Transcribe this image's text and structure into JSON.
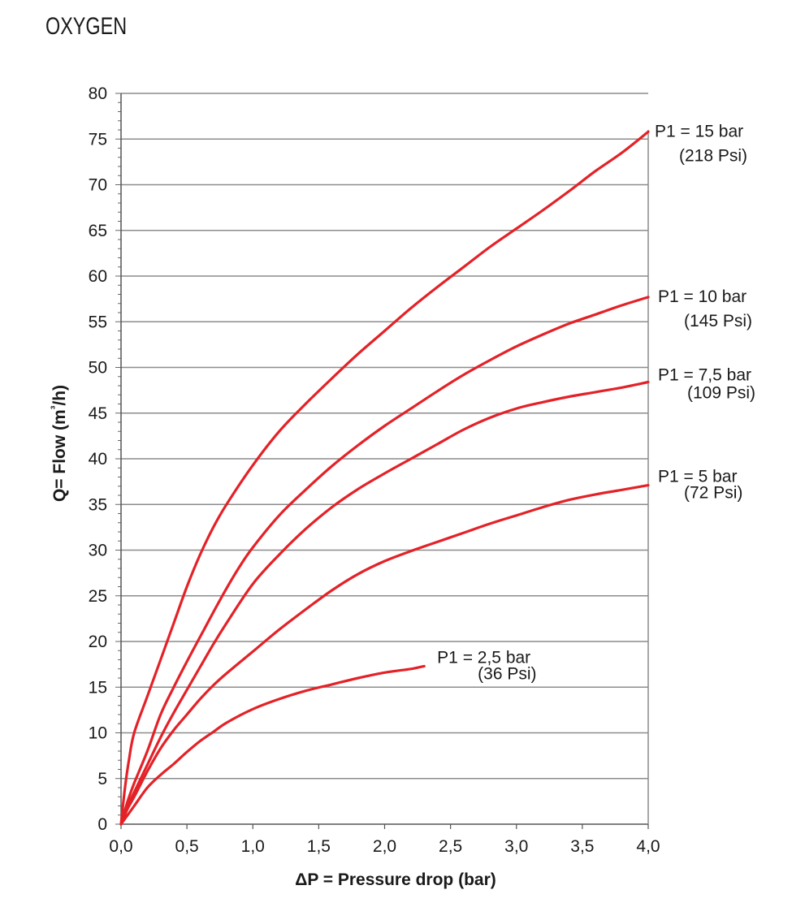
{
  "chart_data": {
    "type": "line",
    "title": "OXYGEN",
    "xlabel": "ΔP = Pressure drop (bar)",
    "ylabel": "Q= Flow (m³/h)",
    "xlim": [
      0,
      4
    ],
    "ylim": [
      0,
      80
    ],
    "x_ticks": [
      "0,0",
      "0,5",
      "1,0",
      "1,5",
      "2,0",
      "2,5",
      "3,0",
      "3,5",
      "4,0"
    ],
    "y_ticks": [
      "0",
      "5",
      "10",
      "15",
      "20",
      "25",
      "30",
      "35",
      "40",
      "45",
      "50",
      "55",
      "60",
      "65",
      "70",
      "75",
      "80"
    ],
    "grid": "horizontal",
    "line_color": "#e32228",
    "series": [
      {
        "name": "P1 = 15 bar",
        "sub": "(218 Psi)",
        "points": [
          [
            0,
            0
          ],
          [
            0.03,
            4
          ],
          [
            0.06,
            7
          ],
          [
            0.1,
            10
          ],
          [
            0.2,
            14
          ],
          [
            0.3,
            18
          ],
          [
            0.4,
            22
          ],
          [
            0.5,
            26
          ],
          [
            0.6,
            29.5
          ],
          [
            0.7,
            32.5
          ],
          [
            0.8,
            35
          ],
          [
            1.0,
            39.3
          ],
          [
            1.2,
            43
          ],
          [
            1.4,
            46
          ],
          [
            1.6,
            48.8
          ],
          [
            1.8,
            51.5
          ],
          [
            2.0,
            54
          ],
          [
            2.2,
            56.5
          ],
          [
            2.4,
            58.8
          ],
          [
            2.6,
            61
          ],
          [
            2.8,
            63.2
          ],
          [
            3.0,
            65.2
          ],
          [
            3.2,
            67.2
          ],
          [
            3.4,
            69.3
          ],
          [
            3.6,
            71.5
          ],
          [
            3.8,
            73.5
          ],
          [
            4.0,
            75.8
          ]
        ]
      },
      {
        "name": "P1 = 10 bar",
        "sub": "(145 Psi)",
        "points": [
          [
            0,
            0
          ],
          [
            0.05,
            2.5
          ],
          [
            0.1,
            4.5
          ],
          [
            0.2,
            8
          ],
          [
            0.3,
            12
          ],
          [
            0.4,
            15
          ],
          [
            0.5,
            17.8
          ],
          [
            0.6,
            20.5
          ],
          [
            0.7,
            23.2
          ],
          [
            0.8,
            25.8
          ],
          [
            0.9,
            28.2
          ],
          [
            1.0,
            30.3
          ],
          [
            1.2,
            33.8
          ],
          [
            1.4,
            36.6
          ],
          [
            1.6,
            39.2
          ],
          [
            1.8,
            41.5
          ],
          [
            2.0,
            43.6
          ],
          [
            2.2,
            45.5
          ],
          [
            2.4,
            47.4
          ],
          [
            2.6,
            49.2
          ],
          [
            2.8,
            50.8
          ],
          [
            3.0,
            52.3
          ],
          [
            3.2,
            53.6
          ],
          [
            3.4,
            54.8
          ],
          [
            3.6,
            55.8
          ],
          [
            3.8,
            56.8
          ],
          [
            4.0,
            57.7
          ]
        ]
      },
      {
        "name": "P1 = 7,5 bar",
        "sub": "(109 Psi)",
        "points": [
          [
            0,
            0
          ],
          [
            0.05,
            2
          ],
          [
            0.1,
            3.5
          ],
          [
            0.2,
            6.5
          ],
          [
            0.3,
            9.5
          ],
          [
            0.4,
            12.2
          ],
          [
            0.5,
            14.7
          ],
          [
            0.6,
            17.2
          ],
          [
            0.7,
            19.7
          ],
          [
            0.8,
            22
          ],
          [
            1.0,
            26.3
          ],
          [
            1.2,
            29.5
          ],
          [
            1.4,
            32.3
          ],
          [
            1.6,
            34.7
          ],
          [
            1.8,
            36.7
          ],
          [
            2.0,
            38.4
          ],
          [
            2.2,
            40
          ],
          [
            2.4,
            41.6
          ],
          [
            2.6,
            43.2
          ],
          [
            2.8,
            44.5
          ],
          [
            3.0,
            45.5
          ],
          [
            3.2,
            46.2
          ],
          [
            3.4,
            46.8
          ],
          [
            3.6,
            47.3
          ],
          [
            3.8,
            47.8
          ],
          [
            4.0,
            48.4
          ]
        ]
      },
      {
        "name": "P1 = 5 bar",
        "sub": "(72 Psi)",
        "points": [
          [
            0,
            0
          ],
          [
            0.05,
            1.7
          ],
          [
            0.1,
            3
          ],
          [
            0.2,
            5.8
          ],
          [
            0.3,
            8.3
          ],
          [
            0.4,
            10.3
          ],
          [
            0.5,
            12
          ],
          [
            0.6,
            13.7
          ],
          [
            0.7,
            15.2
          ],
          [
            0.8,
            16.5
          ],
          [
            1.0,
            18.9
          ],
          [
            1.2,
            21.3
          ],
          [
            1.4,
            23.5
          ],
          [
            1.6,
            25.6
          ],
          [
            1.8,
            27.4
          ],
          [
            2.0,
            28.8
          ],
          [
            2.2,
            29.9
          ],
          [
            2.4,
            30.9
          ],
          [
            2.6,
            31.9
          ],
          [
            2.8,
            32.9
          ],
          [
            3.0,
            33.8
          ],
          [
            3.2,
            34.7
          ],
          [
            3.4,
            35.5
          ],
          [
            3.6,
            36.1
          ],
          [
            3.8,
            36.6
          ],
          [
            4.0,
            37.1
          ]
        ]
      },
      {
        "name": "P1 = 2,5 bar",
        "sub": "(36 Psi)",
        "points": [
          [
            0,
            0
          ],
          [
            0.05,
            1
          ],
          [
            0.1,
            2
          ],
          [
            0.2,
            4
          ],
          [
            0.3,
            5.4
          ],
          [
            0.4,
            6.6
          ],
          [
            0.5,
            7.9
          ],
          [
            0.6,
            9.1
          ],
          [
            0.7,
            10.1
          ],
          [
            0.8,
            11.1
          ],
          [
            1.0,
            12.6
          ],
          [
            1.2,
            13.7
          ],
          [
            1.4,
            14.6
          ],
          [
            1.6,
            15.3
          ],
          [
            1.8,
            16
          ],
          [
            2.0,
            16.6
          ],
          [
            2.2,
            17
          ],
          [
            2.3,
            17.3
          ]
        ]
      }
    ]
  }
}
